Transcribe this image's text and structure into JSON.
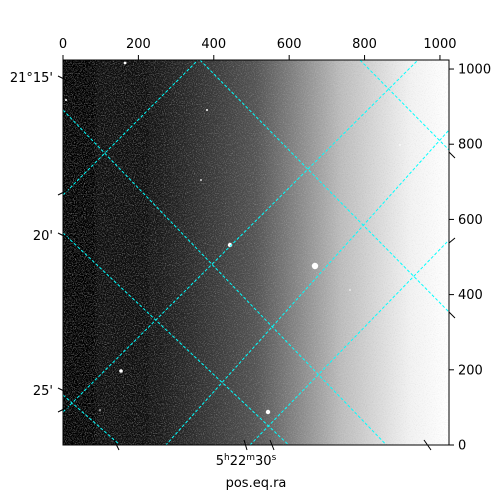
{
  "chart_data": {
    "type": "image",
    "title": "",
    "xlabel": "pos.eq.ra",
    "ylabel": "",
    "pixel_axes": {
      "x_ticks": [
        0,
        200,
        400,
        600,
        800,
        1000
      ],
      "x_tick_labels": [
        "0",
        "200",
        "400",
        "600",
        "800",
        "1000"
      ],
      "y_ticks": [
        0,
        200,
        400,
        600,
        800,
        1000
      ],
      "y_tick_labels": [
        "0",
        "200",
        "400",
        "600",
        "800",
        "1000"
      ],
      "xlim": [
        0,
        1024
      ],
      "ylim": [
        0,
        1024
      ]
    },
    "world_axes": {
      "ra_tick_labels": [
        "5h22m30s"
      ],
      "dec_tick_labels": [
        "21°15'",
        "20'",
        "25'"
      ]
    },
    "image": {
      "colormap": "grayscale",
      "gradient": "dark on left to bright on right",
      "grid_color": "#00ffff",
      "grid_style": "dashed"
    }
  }
}
